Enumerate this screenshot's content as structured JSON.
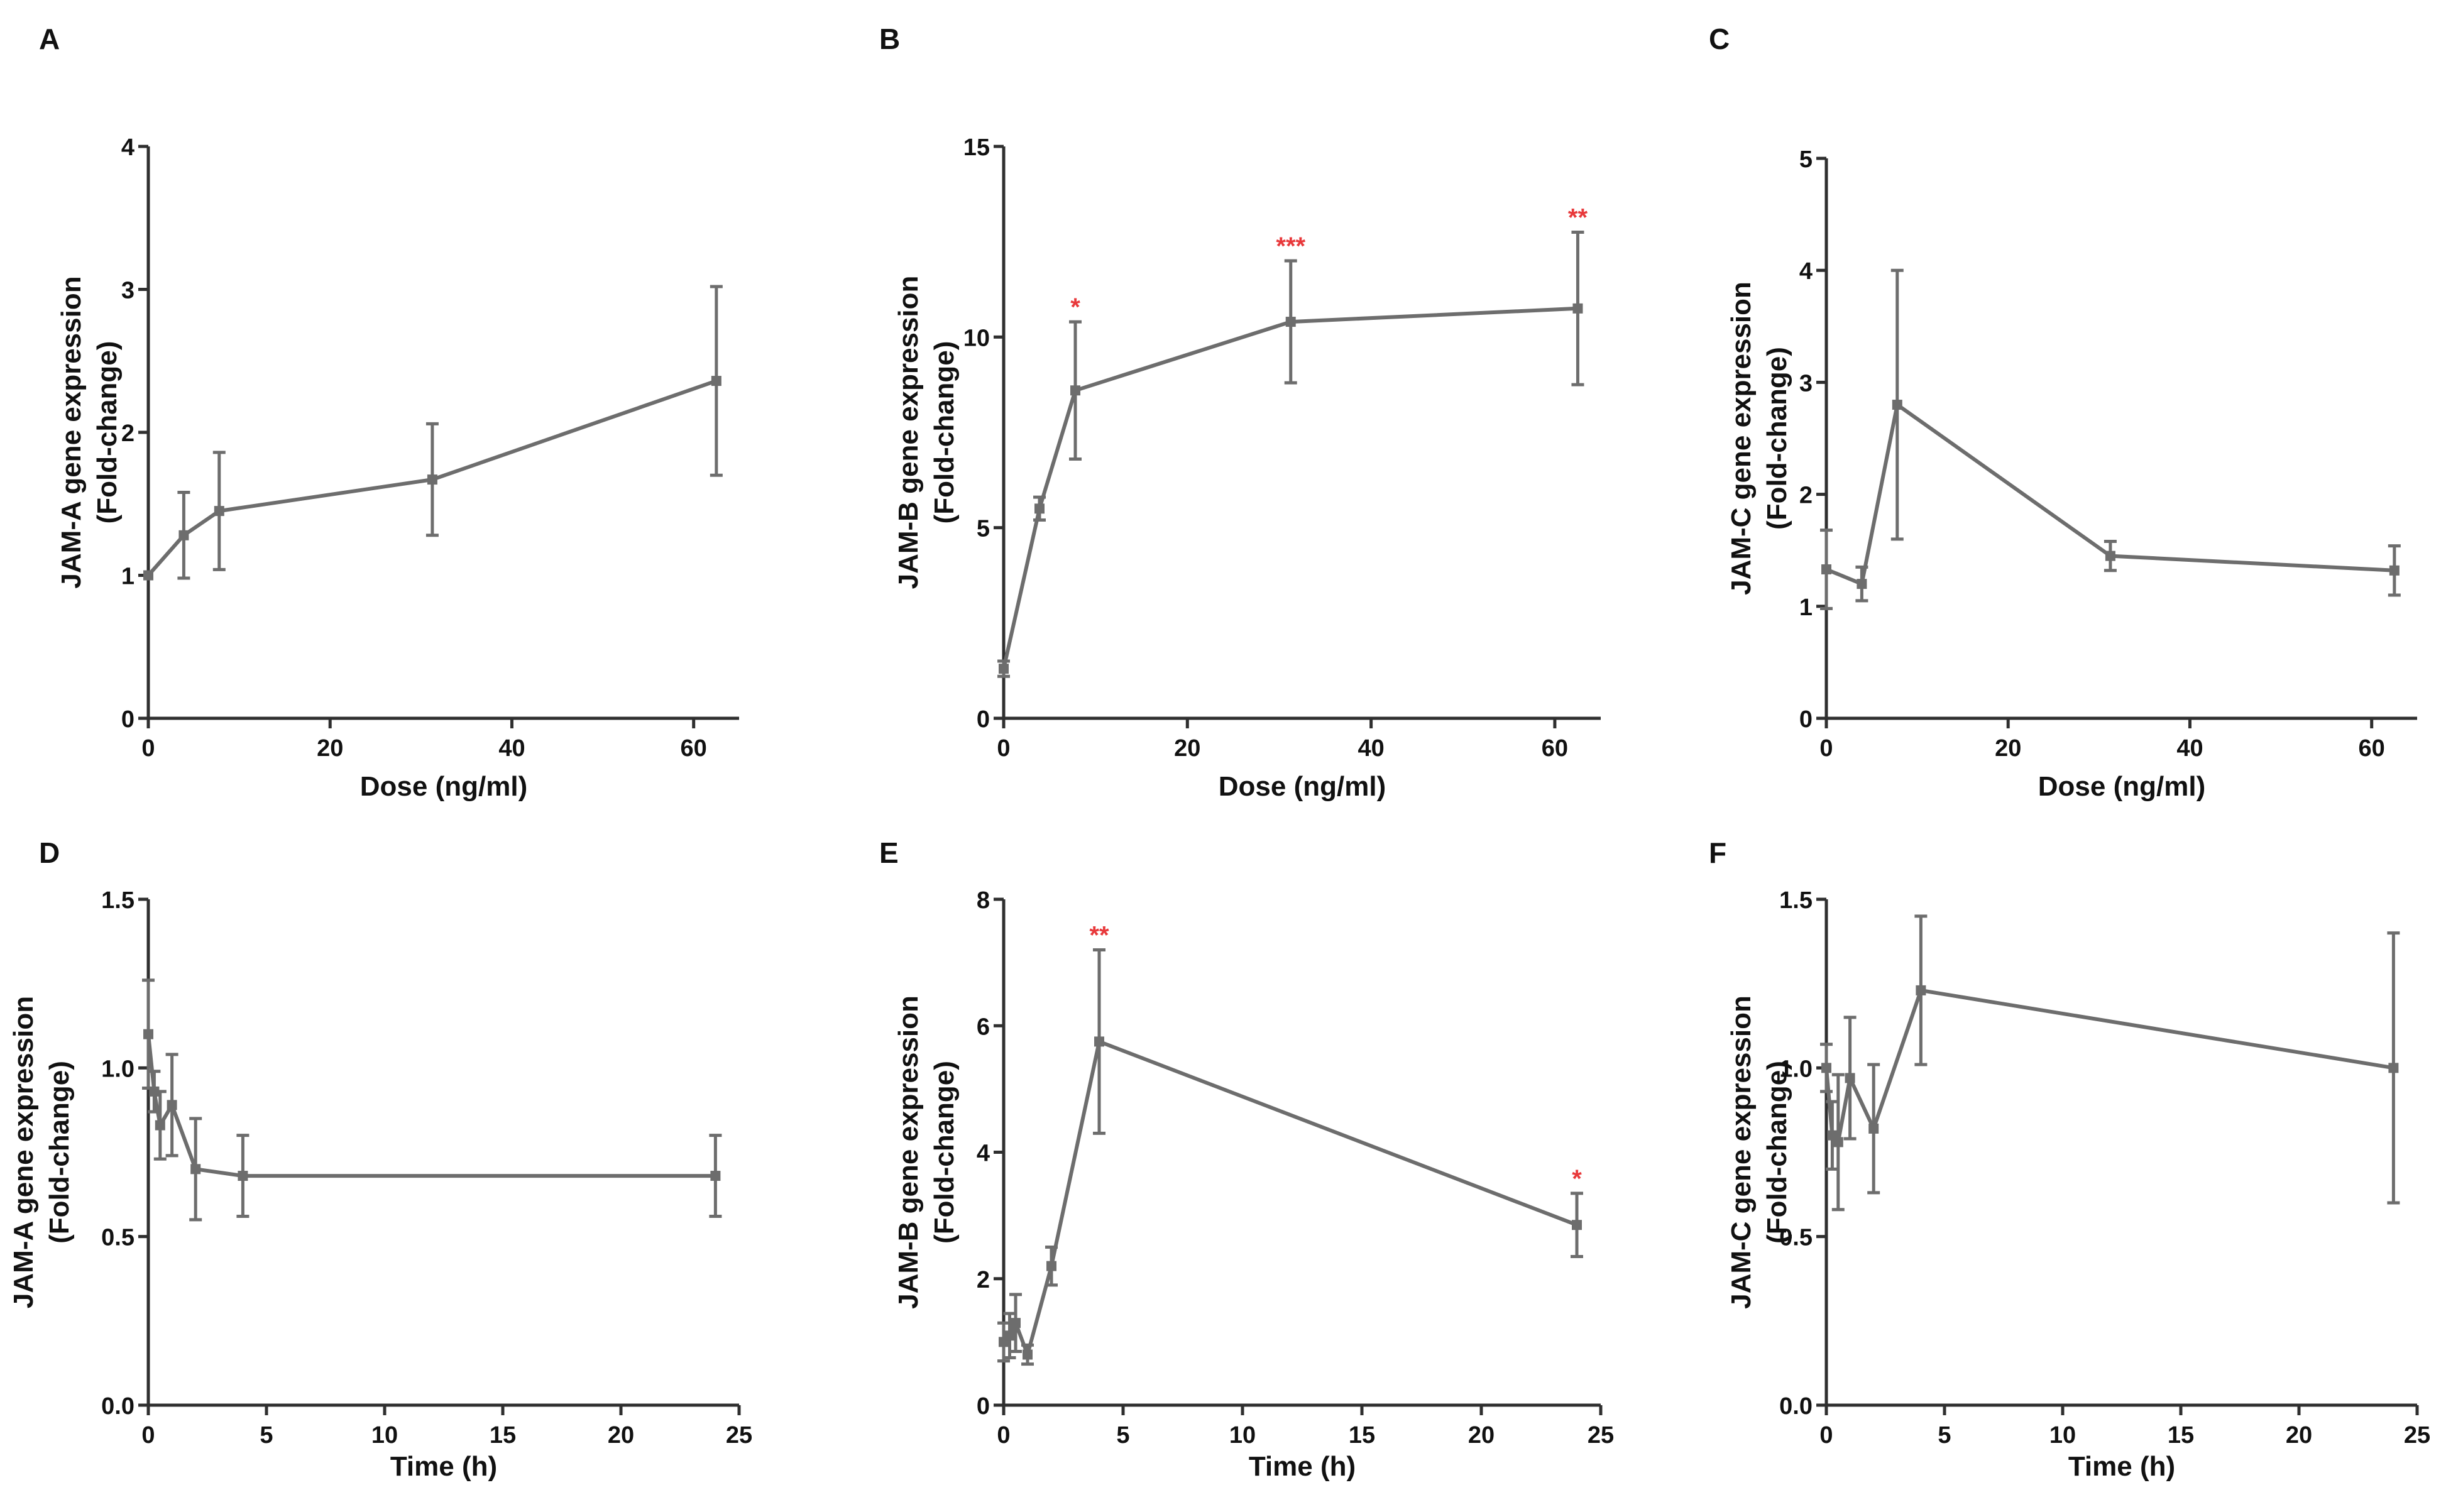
{
  "colors": {
    "series": "#6d6d6d",
    "axis": "#2f2f2f",
    "significance": "#e8393b",
    "text": "#111111"
  },
  "chart_data": [
    {
      "panel": "A",
      "type": "line",
      "xlabel": "Dose (ng/ml)",
      "ylabel": [
        "JAM-A gene expression",
        "(Fold-change)"
      ],
      "xlim": [
        0,
        65
      ],
      "ylim": [
        0,
        4
      ],
      "xticks": [
        0,
        20,
        40,
        60
      ],
      "xtick_labels": [
        "0",
        "20",
        "40",
        "60"
      ],
      "yticks": [
        0,
        1,
        2,
        3,
        4
      ],
      "ytick_labels": [
        "0",
        "1",
        "2",
        "3",
        "4"
      ],
      "x": [
        0,
        3.9,
        7.8,
        31.25,
        62.5
      ],
      "y": [
        1.0,
        1.28,
        1.45,
        1.67,
        2.36
      ],
      "err": [
        0.0,
        0.3,
        0.41,
        0.39,
        0.66
      ],
      "sig": [
        "",
        "",
        "",
        "",
        ""
      ]
    },
    {
      "panel": "B",
      "type": "line",
      "xlabel": "Dose (ng/ml)",
      "ylabel": [
        "JAM-B gene expression",
        "(Fold-change)"
      ],
      "xlim": [
        0,
        65
      ],
      "ylim": [
        0,
        15
      ],
      "xticks": [
        0,
        20,
        40,
        60
      ],
      "xtick_labels": [
        "0",
        "20",
        "40",
        "60"
      ],
      "yticks": [
        0,
        5,
        10,
        15
      ],
      "ytick_labels": [
        "0",
        "5",
        "10",
        "15"
      ],
      "x": [
        0,
        3.9,
        7.8,
        31.25,
        62.5
      ],
      "y": [
        1.3,
        5.5,
        8.6,
        10.4,
        10.75
      ],
      "err": [
        0.2,
        0.3,
        1.8,
        1.6,
        2.0
      ],
      "sig": [
        "",
        "",
        "*",
        "***",
        "**"
      ]
    },
    {
      "panel": "C",
      "type": "line",
      "xlabel": "Dose (ng/ml)",
      "ylabel": [
        "JAM-C gene expression",
        "(Fold-change)"
      ],
      "xlim": [
        0,
        65
      ],
      "ylim": [
        0,
        5
      ],
      "xticks": [
        0,
        20,
        40,
        60
      ],
      "xtick_labels": [
        "0",
        "20",
        "40",
        "60"
      ],
      "yticks": [
        0,
        1,
        2,
        3,
        4,
        5
      ],
      "ytick_labels": [
        "0",
        "1",
        "2",
        "3",
        "4",
        "5"
      ],
      "x": [
        0,
        3.9,
        7.8,
        31.25,
        62.5
      ],
      "y": [
        1.33,
        1.2,
        2.8,
        1.45,
        1.32
      ],
      "err": [
        0.35,
        0.15,
        1.2,
        0.13,
        0.22
      ],
      "sig": [
        "",
        "",
        "",
        "",
        ""
      ]
    },
    {
      "panel": "D",
      "type": "line",
      "xlabel": "Time (h)",
      "ylabel": [
        "JAM-A gene expression",
        "(Fold-change)"
      ],
      "xlim": [
        0,
        25
      ],
      "ylim": [
        0,
        1.5
      ],
      "xticks": [
        0,
        5,
        10,
        15,
        20,
        25
      ],
      "xtick_labels": [
        "0",
        "5",
        "10",
        "15",
        "20",
        "25"
      ],
      "yticks": [
        0,
        0.5,
        1.0,
        1.5
      ],
      "ytick_labels": [
        "0.0",
        "0.5",
        "1.0",
        "1.5"
      ],
      "x": [
        0,
        0.25,
        0.5,
        1,
        2,
        4,
        24
      ],
      "y": [
        1.1,
        0.93,
        0.83,
        0.89,
        0.7,
        0.68,
        0.68
      ],
      "err": [
        0.16,
        0.06,
        0.1,
        0.15,
        0.15,
        0.12,
        0.12
      ],
      "sig": [
        "",
        "",
        "",
        "",
        "",
        "",
        ""
      ]
    },
    {
      "panel": "E",
      "type": "line",
      "xlabel": "Time (h)",
      "ylabel": [
        "JAM-B gene expression",
        "(Fold-change)"
      ],
      "xlim": [
        0,
        25
      ],
      "ylim": [
        0,
        8
      ],
      "xticks": [
        0,
        5,
        10,
        15,
        20,
        25
      ],
      "xtick_labels": [
        "0",
        "5",
        "10",
        "15",
        "20",
        "25"
      ],
      "yticks": [
        0,
        2,
        4,
        6,
        8
      ],
      "ytick_labels": [
        "0",
        "2",
        "4",
        "6",
        "8"
      ],
      "x": [
        0,
        0.25,
        0.5,
        1,
        2,
        4,
        24
      ],
      "y": [
        1.0,
        1.1,
        1.3,
        0.8,
        2.2,
        5.75,
        2.85
      ],
      "err": [
        0.3,
        0.35,
        0.45,
        0.15,
        0.3,
        1.45,
        0.5
      ],
      "sig": [
        "",
        "",
        "",
        "",
        "",
        "**",
        "*"
      ]
    },
    {
      "panel": "F",
      "type": "line",
      "xlabel": "Time (h)",
      "ylabel": [
        "JAM-C gene expression",
        "(Fold-change)"
      ],
      "xlim": [
        0,
        25
      ],
      "ylim": [
        0,
        1.5
      ],
      "xticks": [
        0,
        5,
        10,
        15,
        20,
        25
      ],
      "xtick_labels": [
        "0",
        "5",
        "10",
        "15",
        "20",
        "25"
      ],
      "yticks": [
        0,
        0.5,
        1.0,
        1.5
      ],
      "ytick_labels": [
        "0.0",
        "0.5",
        "1.0",
        "1.5"
      ],
      "x": [
        0,
        0.25,
        0.5,
        1,
        2,
        4,
        24
      ],
      "y": [
        1.0,
        0.8,
        0.78,
        0.97,
        0.82,
        1.23,
        1.0
      ],
      "err": [
        0.07,
        0.1,
        0.2,
        0.18,
        0.19,
        0.22,
        0.4
      ],
      "sig": [
        "",
        "",
        "",
        "",
        "",
        "",
        ""
      ]
    }
  ]
}
